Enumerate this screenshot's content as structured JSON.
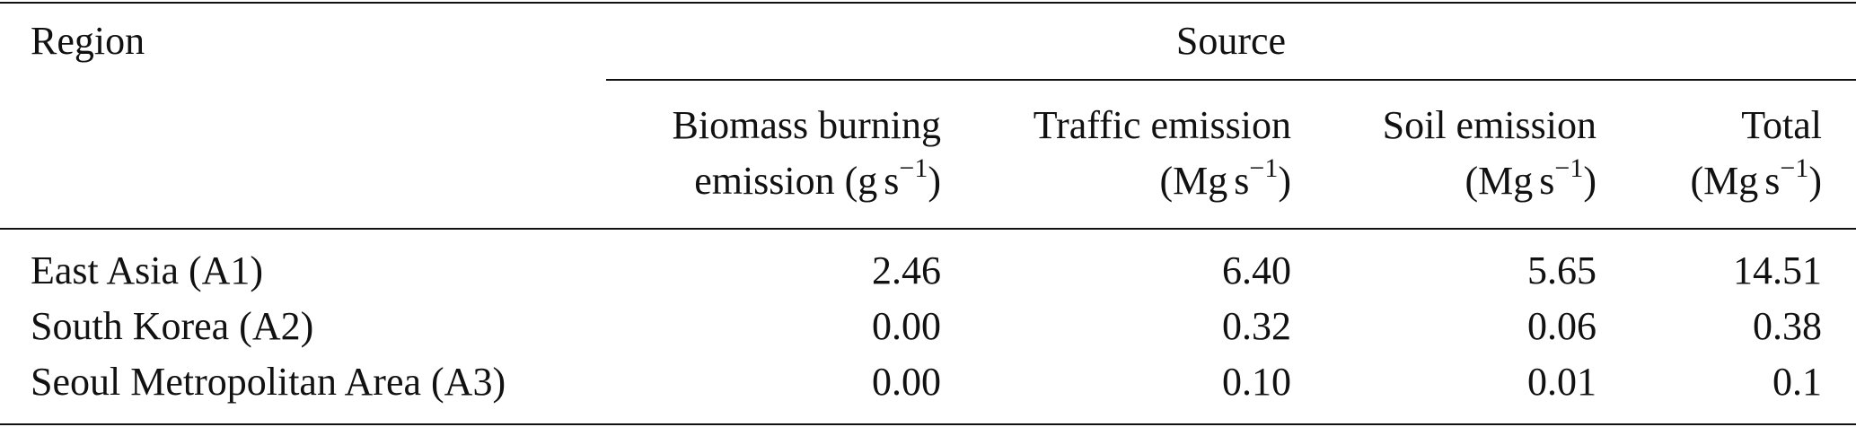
{
  "table": {
    "header": {
      "region": "Region",
      "source": "Source",
      "columns": [
        {
          "line1": "Biomass burning",
          "line2_prefix": "emission (g",
          "unit_s": "s",
          "exp": "−1",
          "close": ")"
        },
        {
          "line1": "Traffic emission",
          "line2_prefix": "(Mg",
          "unit_s": "s",
          "exp": "−1",
          "close": ")"
        },
        {
          "line1": "Soil emission",
          "line2_prefix": "(Mg",
          "unit_s": "s",
          "exp": "−1",
          "close": ")"
        },
        {
          "line1": "Total",
          "line2_prefix": "(Mg",
          "unit_s": "s",
          "exp": "−1",
          "close": ")"
        }
      ]
    },
    "rows": [
      {
        "region": "East Asia (A1)",
        "biomass": "2.46",
        "traffic": "6.40",
        "soil": "5.65",
        "total": "14.51"
      },
      {
        "region": "South Korea (A2)",
        "biomass": "0.00",
        "traffic": "0.32",
        "soil": "0.06",
        "total": "0.38"
      },
      {
        "region": "Seoul Metropolitan Area (A3)",
        "biomass": "0.00",
        "traffic": "0.10",
        "soil": "0.01",
        "total": "0.1"
      }
    ]
  }
}
